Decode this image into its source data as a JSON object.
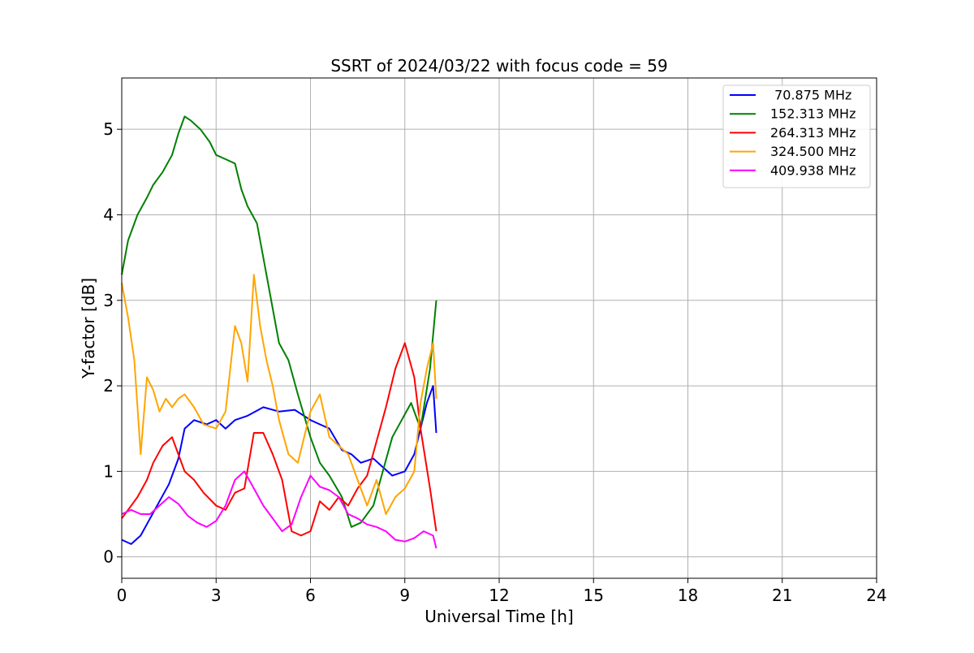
{
  "chart_data": {
    "type": "line",
    "title": "SSRT of 2024/03/22 with focus code = 59",
    "xlabel": "Universal Time [h]",
    "ylabel": "Y-factor [dB]",
    "xlim": [
      0,
      24
    ],
    "ylim": [
      -0.25,
      5.6
    ],
    "xticks": [
      0,
      3,
      6,
      9,
      12,
      15,
      18,
      21,
      24
    ],
    "yticks": [
      0,
      1,
      2,
      3,
      4,
      5
    ],
    "grid": true,
    "legend_position": "top-right",
    "series": [
      {
        "name": " 70.875 MHz",
        "color": "#0000ff",
        "x": [
          0.0,
          0.3,
          0.6,
          0.9,
          1.2,
          1.5,
          1.8,
          2.0,
          2.3,
          2.7,
          3.0,
          3.3,
          3.6,
          4.0,
          4.5,
          5.0,
          5.5,
          6.0,
          6.3,
          6.6,
          7.0,
          7.3,
          7.6,
          8.0,
          8.3,
          8.6,
          9.0,
          9.3,
          9.5,
          9.7,
          9.9,
          10.0
        ],
        "y": [
          0.2,
          0.15,
          0.25,
          0.45,
          0.65,
          0.85,
          1.15,
          1.5,
          1.6,
          1.55,
          1.6,
          1.5,
          1.6,
          1.65,
          1.75,
          1.7,
          1.72,
          1.6,
          1.55,
          1.5,
          1.25,
          1.2,
          1.1,
          1.15,
          1.05,
          0.95,
          1.0,
          1.2,
          1.5,
          1.8,
          2.0,
          1.45
        ]
      },
      {
        "name": "152.313 MHz",
        "color": "#008000",
        "x": [
          0.0,
          0.2,
          0.5,
          0.8,
          1.0,
          1.3,
          1.6,
          1.8,
          2.0,
          2.2,
          2.5,
          2.8,
          3.0,
          3.3,
          3.6,
          3.8,
          4.0,
          4.3,
          4.6,
          5.0,
          5.3,
          5.6,
          6.0,
          6.3,
          6.6,
          7.0,
          7.3,
          7.6,
          8.0,
          8.3,
          8.6,
          8.9,
          9.2,
          9.5,
          9.8,
          10.0
        ],
        "y": [
          3.3,
          3.7,
          4.0,
          4.2,
          4.35,
          4.5,
          4.7,
          4.95,
          5.15,
          5.1,
          5.0,
          4.85,
          4.7,
          4.65,
          4.6,
          4.3,
          4.1,
          3.9,
          3.3,
          2.5,
          2.3,
          1.9,
          1.4,
          1.1,
          0.95,
          0.7,
          0.35,
          0.4,
          0.6,
          1.0,
          1.4,
          1.6,
          1.8,
          1.5,
          2.2,
          3.0
        ]
      },
      {
        "name": "264.313 MHz",
        "color": "#ff0000",
        "x": [
          0.0,
          0.2,
          0.5,
          0.8,
          1.0,
          1.3,
          1.6,
          2.0,
          2.3,
          2.6,
          3.0,
          3.3,
          3.6,
          3.9,
          4.2,
          4.5,
          4.8,
          5.1,
          5.4,
          5.7,
          6.0,
          6.3,
          6.6,
          6.9,
          7.2,
          7.5,
          7.8,
          8.1,
          8.4,
          8.7,
          9.0,
          9.3,
          9.5,
          9.8,
          10.0
        ],
        "y": [
          0.45,
          0.55,
          0.7,
          0.9,
          1.1,
          1.3,
          1.4,
          1.0,
          0.9,
          0.75,
          0.6,
          0.55,
          0.75,
          0.8,
          1.45,
          1.45,
          1.2,
          0.9,
          0.3,
          0.25,
          0.3,
          0.65,
          0.55,
          0.7,
          0.6,
          0.8,
          0.95,
          1.35,
          1.75,
          2.2,
          2.5,
          2.1,
          1.5,
          0.8,
          0.3
        ]
      },
      {
        "name": "324.500 MHz",
        "color": "#ffa500",
        "x": [
          0.0,
          0.2,
          0.4,
          0.6,
          0.8,
          1.0,
          1.2,
          1.4,
          1.6,
          1.8,
          2.0,
          2.3,
          2.6,
          3.0,
          3.3,
          3.6,
          3.8,
          4.0,
          4.2,
          4.4,
          4.6,
          4.8,
          5.0,
          5.3,
          5.6,
          6.0,
          6.3,
          6.6,
          6.9,
          7.2,
          7.5,
          7.8,
          8.1,
          8.4,
          8.7,
          9.0,
          9.3,
          9.5,
          9.7,
          9.9,
          10.0
        ],
        "y": [
          3.2,
          2.8,
          2.3,
          1.2,
          2.1,
          1.95,
          1.7,
          1.85,
          1.75,
          1.85,
          1.9,
          1.75,
          1.55,
          1.5,
          1.7,
          2.7,
          2.5,
          2.05,
          3.3,
          2.7,
          2.3,
          2.0,
          1.6,
          1.2,
          1.1,
          1.7,
          1.9,
          1.4,
          1.3,
          1.2,
          0.9,
          0.6,
          0.9,
          0.5,
          0.7,
          0.8,
          1.0,
          1.8,
          2.2,
          2.5,
          1.85
        ]
      },
      {
        "name": "409.938 MHz",
        "color": "#ff00ff",
        "x": [
          0.0,
          0.3,
          0.6,
          0.9,
          1.2,
          1.5,
          1.8,
          2.1,
          2.4,
          2.7,
          3.0,
          3.3,
          3.6,
          3.9,
          4.2,
          4.5,
          4.8,
          5.1,
          5.4,
          5.7,
          6.0,
          6.3,
          6.6,
          6.9,
          7.2,
          7.5,
          7.8,
          8.1,
          8.4,
          8.7,
          9.0,
          9.3,
          9.6,
          9.9,
          10.0
        ],
        "y": [
          0.5,
          0.55,
          0.5,
          0.5,
          0.6,
          0.7,
          0.62,
          0.48,
          0.4,
          0.35,
          0.42,
          0.6,
          0.9,
          1.0,
          0.8,
          0.6,
          0.45,
          0.3,
          0.38,
          0.7,
          0.95,
          0.82,
          0.78,
          0.7,
          0.5,
          0.45,
          0.38,
          0.35,
          0.3,
          0.2,
          0.18,
          0.22,
          0.3,
          0.25,
          0.1
        ]
      }
    ]
  }
}
